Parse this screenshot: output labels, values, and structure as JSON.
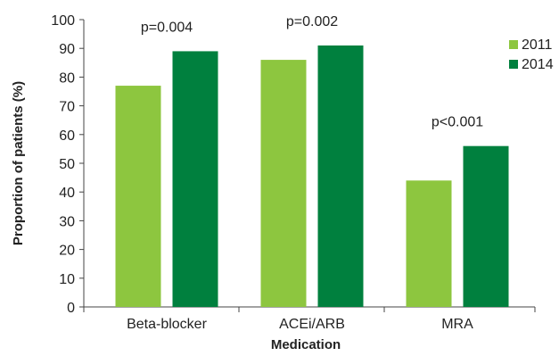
{
  "chart_data": {
    "type": "bar",
    "xlabel": "Medication",
    "ylabel": "Proportion of patients (%)",
    "categories": [
      "Beta-blocker",
      "ACEi/ARB",
      "MRA"
    ],
    "series": [
      {
        "name": "2011",
        "color": "#8DC63F",
        "values": [
          77,
          86,
          44
        ]
      },
      {
        "name": "2014",
        "color": "#00803E",
        "values": [
          89,
          91,
          56
        ]
      }
    ],
    "ylim": [
      0,
      100
    ],
    "yticks": [
      0,
      10,
      20,
      30,
      40,
      50,
      60,
      70,
      80,
      90,
      100
    ],
    "annotations": [
      "p=0.004",
      "p=0.002",
      "p<0.001"
    ],
    "legend_position": "top-right",
    "grid": false
  }
}
